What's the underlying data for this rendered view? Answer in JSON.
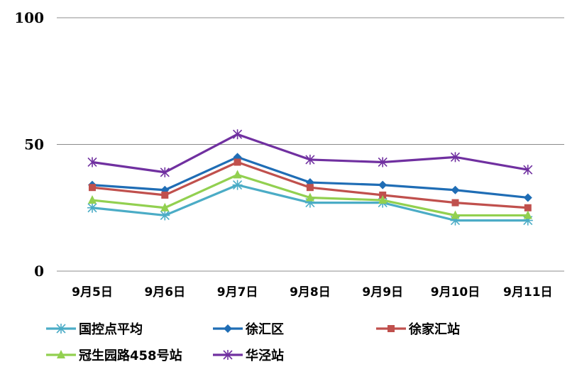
{
  "chart_data": {
    "type": "line",
    "title": "",
    "xlabel": "",
    "ylabel": "",
    "ylim": [
      0,
      100
    ],
    "yticks": [
      "0",
      "50",
      "100"
    ],
    "grid": "horizontal",
    "legend_position": "bottom",
    "categories": [
      "9月5日",
      "9月6日",
      "9月7日",
      "9月8日",
      "9月9日",
      "9月10日",
      "9月11日"
    ],
    "series": [
      {
        "name": "国控点平均",
        "color": "#4bacc6",
        "marker": "asterisk",
        "values": [
          25,
          22,
          34,
          27,
          27,
          20,
          20
        ]
      },
      {
        "name": "徐汇区",
        "color": "#1f6db5",
        "marker": "diamond",
        "values": [
          34,
          32,
          45,
          35,
          34,
          32,
          29
        ]
      },
      {
        "name": "徐家汇站",
        "color": "#c0504d",
        "marker": "square",
        "values": [
          33,
          30,
          43,
          33,
          30,
          27,
          25
        ]
      },
      {
        "name": "冠生园路458号站",
        "color": "#92d050",
        "marker": "triangle",
        "values": [
          28,
          25,
          38,
          29,
          28,
          22,
          22
        ]
      },
      {
        "name": "华泾站",
        "color": "#7030a0",
        "marker": "star",
        "values": [
          43,
          39,
          54,
          44,
          43,
          45,
          40
        ]
      }
    ]
  }
}
